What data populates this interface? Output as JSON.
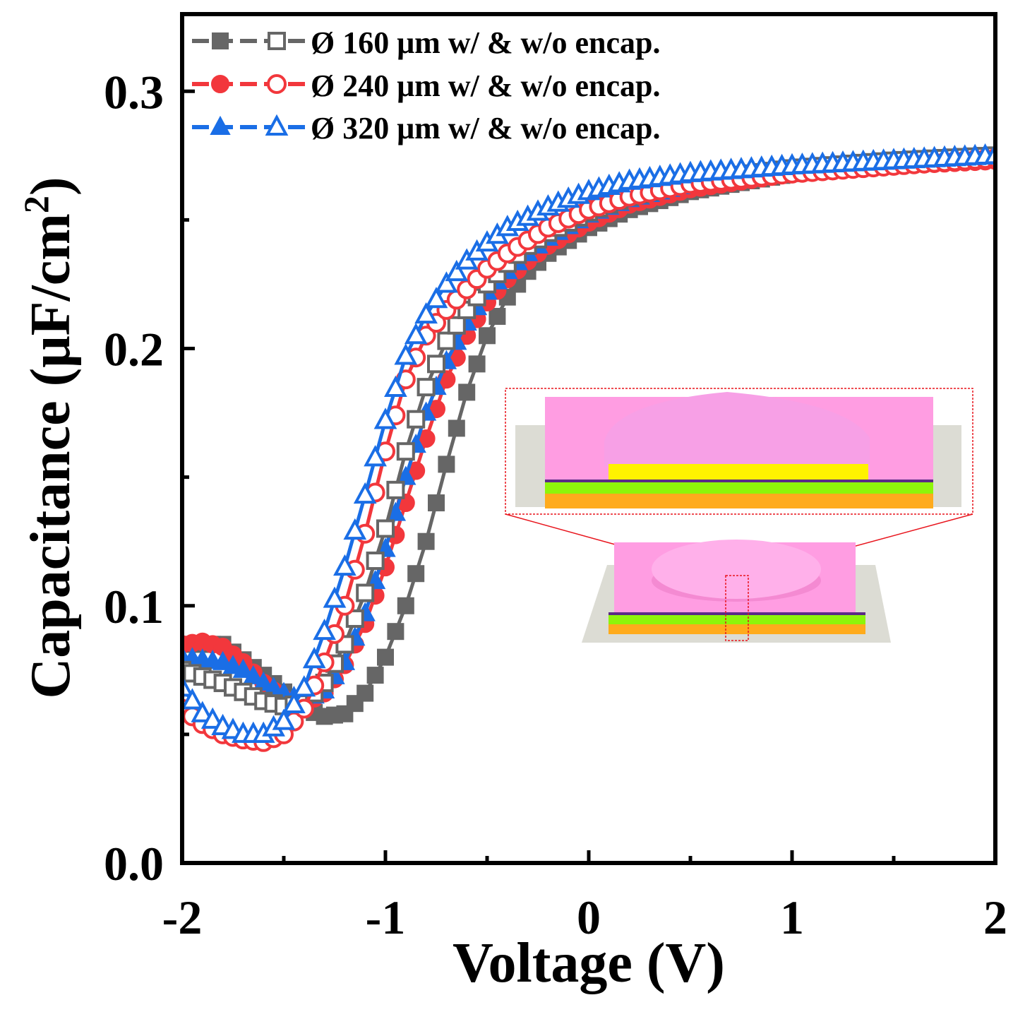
{
  "chart_data": {
    "type": "scatter",
    "title": "",
    "xlabel": "Voltage (V)",
    "ylabel_main": "Capacitance (μF/cm",
    "ylabel_sup": "2",
    "ylabel_close": ")",
    "xlim": [
      -2,
      2
    ],
    "ylim": [
      0.0,
      0.33
    ],
    "xticks": [
      -2,
      -1,
      0,
      1,
      2
    ],
    "xtick_labels": [
      "-2",
      "-1",
      "0",
      "1",
      "2"
    ],
    "xminor": [
      -1.5,
      -0.5,
      0.5,
      1.5
    ],
    "yticks": [
      0.0,
      0.1,
      0.2,
      0.3
    ],
    "ytick_labels": [
      "0.0",
      "0.1",
      "0.2",
      "0.3"
    ],
    "yminor": [
      0.05,
      0.15,
      0.25
    ],
    "legend_position": "top-left",
    "legend": [
      {
        "label": "Ø 160 μm w/ & w/o encap.",
        "color": "#666666",
        "marker": "square"
      },
      {
        "label": "Ø 240 μm w/ & w/o encap.",
        "color": "#f2373c",
        "marker": "circle"
      },
      {
        "label": "Ø 320 μm w/ & w/o encap.",
        "color": "#1a6ee6",
        "marker": "triangle"
      }
    ],
    "series": [
      {
        "name": "Ø 160 μm w/ encap.",
        "color": "#666666",
        "marker": "square",
        "filled": true,
        "x": [
          -2.0,
          -1.8,
          -1.6,
          -1.4,
          -1.3,
          -1.2,
          -1.1,
          -1.0,
          -0.9,
          -0.8,
          -0.7,
          -0.6,
          -0.5,
          -0.4,
          -0.3,
          -0.2,
          0.0,
          0.2,
          0.5,
          1.0,
          1.5,
          2.0
        ],
        "y": [
          0.085,
          0.085,
          0.073,
          0.06,
          0.057,
          0.058,
          0.066,
          0.08,
          0.1,
          0.125,
          0.155,
          0.183,
          0.205,
          0.22,
          0.23,
          0.237,
          0.247,
          0.254,
          0.261,
          0.268,
          0.272,
          0.274
        ]
      },
      {
        "name": "Ø 160 μm w/o encap.",
        "color": "#666666",
        "marker": "square",
        "filled": false,
        "x": [
          -2.0,
          -1.8,
          -1.6,
          -1.5,
          -1.4,
          -1.3,
          -1.2,
          -1.1,
          -1.0,
          -0.9,
          -0.8,
          -0.7,
          -0.6,
          -0.5,
          -0.4,
          -0.3,
          -0.2,
          0.0,
          0.2,
          0.5,
          1.0,
          1.5,
          2.0
        ],
        "y": [
          0.075,
          0.07,
          0.063,
          0.061,
          0.062,
          0.07,
          0.085,
          0.105,
          0.13,
          0.16,
          0.185,
          0.203,
          0.215,
          0.225,
          0.233,
          0.24,
          0.245,
          0.253,
          0.259,
          0.265,
          0.27,
          0.273,
          0.275
        ]
      },
      {
        "name": "Ø 240 μm w/ encap.",
        "color": "#f2373c",
        "marker": "circle",
        "filled": true,
        "x": [
          -2.0,
          -1.9,
          -1.8,
          -1.7,
          -1.6,
          -1.5,
          -1.4,
          -1.3,
          -1.2,
          -1.1,
          -1.0,
          -0.9,
          -0.8,
          -0.7,
          -0.6,
          -0.5,
          -0.4,
          -0.3,
          -0.2,
          0.0,
          0.2,
          0.5,
          1.0,
          1.5,
          2.0
        ],
        "y": [
          0.085,
          0.086,
          0.084,
          0.078,
          0.07,
          0.064,
          0.062,
          0.066,
          0.077,
          0.093,
          0.115,
          0.14,
          0.165,
          0.188,
          0.205,
          0.218,
          0.227,
          0.234,
          0.24,
          0.249,
          0.256,
          0.262,
          0.268,
          0.271,
          0.273
        ]
      },
      {
        "name": "Ø 240 μm w/o encap.",
        "color": "#f2373c",
        "marker": "circle",
        "filled": false,
        "x": [
          -2.0,
          -1.9,
          -1.8,
          -1.7,
          -1.6,
          -1.5,
          -1.4,
          -1.3,
          -1.2,
          -1.1,
          -1.0,
          -0.9,
          -0.8,
          -0.7,
          -0.6,
          -0.5,
          -0.4,
          -0.3,
          -0.2,
          0.0,
          0.2,
          0.5,
          1.0,
          1.5,
          2.0
        ],
        "y": [
          0.06,
          0.054,
          0.05,
          0.048,
          0.047,
          0.05,
          0.06,
          0.078,
          0.1,
          0.128,
          0.16,
          0.188,
          0.205,
          0.215,
          0.223,
          0.231,
          0.237,
          0.242,
          0.247,
          0.254,
          0.259,
          0.264,
          0.268,
          0.271,
          0.274
        ]
      },
      {
        "name": "Ø 320 μm w/ encap.",
        "color": "#1a6ee6",
        "marker": "triangle",
        "filled": true,
        "x": [
          -2.0,
          -1.9,
          -1.8,
          -1.7,
          -1.6,
          -1.5,
          -1.4,
          -1.3,
          -1.2,
          -1.1,
          -1.0,
          -0.9,
          -0.8,
          -0.7,
          -0.6,
          -0.5,
          -0.4,
          -0.3,
          -0.2,
          0.0,
          0.2,
          0.5,
          1.0,
          1.5,
          2.0
        ],
        "y": [
          0.08,
          0.079,
          0.078,
          0.075,
          0.07,
          0.066,
          0.063,
          0.067,
          0.078,
          0.097,
          0.122,
          0.15,
          0.175,
          0.195,
          0.21,
          0.222,
          0.23,
          0.237,
          0.243,
          0.252,
          0.258,
          0.264,
          0.269,
          0.272,
          0.274
        ]
      },
      {
        "name": "Ø 320 μm w/o encap.",
        "color": "#1a6ee6",
        "marker": "triangle",
        "filled": false,
        "x": [
          -2.0,
          -1.9,
          -1.8,
          -1.7,
          -1.6,
          -1.5,
          -1.4,
          -1.3,
          -1.2,
          -1.1,
          -1.0,
          -0.9,
          -0.8,
          -0.7,
          -0.6,
          -0.5,
          -0.4,
          -0.3,
          -0.2,
          0.0,
          0.2,
          0.5,
          1.0,
          1.5,
          2.0
        ],
        "y": [
          0.068,
          0.058,
          0.053,
          0.05,
          0.05,
          0.055,
          0.068,
          0.09,
          0.115,
          0.143,
          0.172,
          0.197,
          0.213,
          0.225,
          0.234,
          0.241,
          0.247,
          0.251,
          0.255,
          0.261,
          0.265,
          0.268,
          0.271,
          0.273,
          0.275
        ]
      }
    ]
  },
  "inset": {
    "colors": {
      "pink": "#ff9de2",
      "pink_dark": "#f48ad2",
      "yellow": "#fff200",
      "green": "#8ef50a",
      "orange": "#ffab1c",
      "substrate": "#dcdcd4",
      "callout": "#e8141c",
      "purple_line": "#5b2a86"
    }
  }
}
